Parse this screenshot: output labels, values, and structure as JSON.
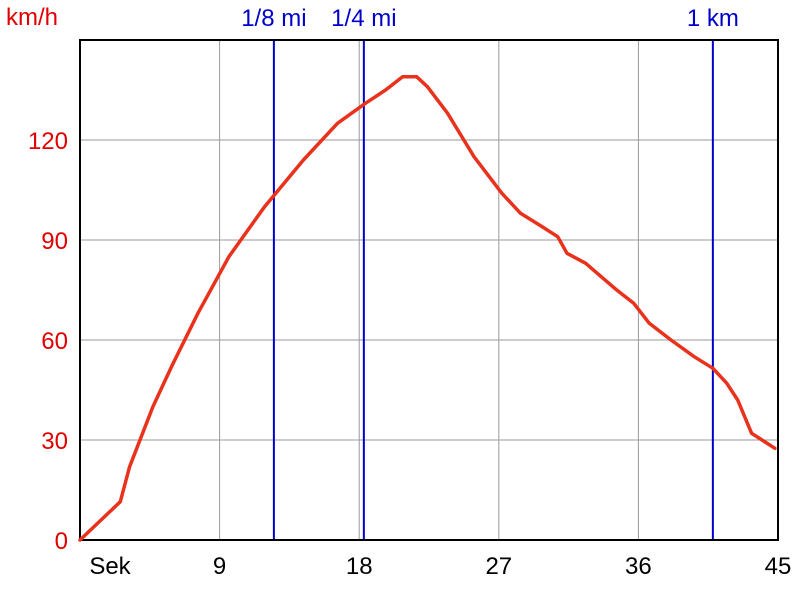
{
  "colors": {
    "curve": "#e8321b",
    "y_text": "#e00000",
    "x_text": "#000000",
    "marker": "#0000cc",
    "grid": "#9a9a9a",
    "frame": "#000000"
  },
  "chart_data": {
    "type": "line",
    "ylabel": "km/h",
    "xlabel": "Sek",
    "xlim": [
      0,
      45
    ],
    "ylim": [
      0,
      150
    ],
    "grid": true,
    "x_ticks": [
      {
        "value": 9,
        "label": "9"
      },
      {
        "value": 18,
        "label": "18"
      },
      {
        "value": 27,
        "label": "27"
      },
      {
        "value": 36,
        "label": "36"
      },
      {
        "value": 45,
        "label": "45"
      }
    ],
    "y_ticks": [
      {
        "value": 0,
        "label": "0"
      },
      {
        "value": 30,
        "label": "30"
      },
      {
        "value": 60,
        "label": "60"
      },
      {
        "value": 90,
        "label": "90"
      },
      {
        "value": 120,
        "label": "120"
      }
    ],
    "markers": [
      {
        "label": "1/8 mi",
        "x": 12.5
      },
      {
        "label": "1/4 mi",
        "x": 18.3
      },
      {
        "label": "1 km",
        "x": 40.8
      }
    ],
    "series": [
      {
        "x": [
          0,
          2.6,
          3.2,
          4.7,
          5.9,
          7.6,
          9.6,
          11.9,
          14.4,
          16.6,
          18.4,
          19.7,
          20.8,
          21.7,
          22.4,
          23.7,
          25.4,
          27.2,
          28.4,
          29.8,
          30.8,
          31.4,
          32.6,
          33.6,
          34.6,
          35.7,
          36.7,
          38.1,
          39.6,
          40.8,
          41.7,
          42.4,
          43.3,
          44.8
        ],
        "y": [
          0,
          11.5,
          22,
          40,
          52,
          68,
          85,
          100,
          114,
          125,
          131,
          135,
          139,
          139,
          136,
          128,
          115,
          104,
          98,
          94,
          91,
          86,
          83,
          79,
          75,
          71,
          65,
          60,
          55,
          51.5,
          47,
          42,
          32,
          27.5
        ]
      }
    ]
  }
}
